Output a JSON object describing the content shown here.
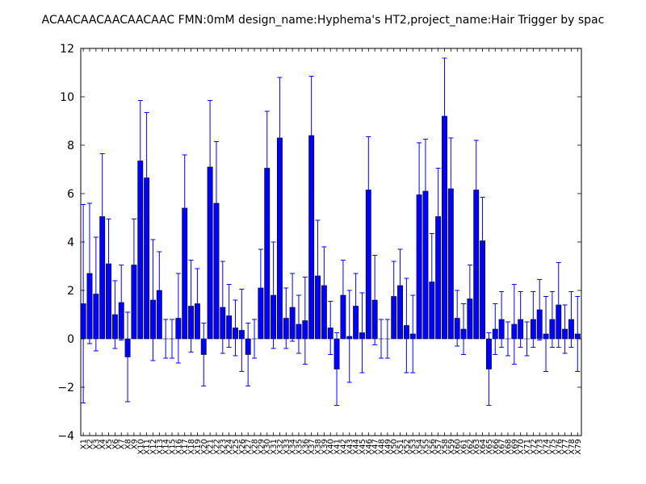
{
  "chart_data": {
    "type": "bar",
    "title": "ACAACAACAACAACAAC  FMN:0mM  design_name:Hyphema's HT2,project_name:Hair Trigger by spac",
    "xlabel": "",
    "ylabel": "",
    "ylim": [
      -4,
      12
    ],
    "yticks": [
      -4,
      -2,
      0,
      2,
      4,
      6,
      8,
      10,
      12
    ],
    "ytick_labels": [
      "−4",
      "−2",
      "0",
      "2",
      "4",
      "6",
      "8",
      "10",
      "12"
    ],
    "grid": false,
    "bar_color": "#0000ff",
    "error_color": "#0000ff",
    "categories": [
      "X1",
      "X2",
      "X3",
      "X4",
      "X5",
      "X6",
      "X7",
      "X8",
      "X9",
      "X10",
      "X11",
      "X12",
      "X13",
      "X14",
      "X15",
      "X16",
      "X17",
      "X18",
      "X19",
      "X20",
      "X21",
      "X22",
      "X23",
      "X24",
      "X25",
      "X26",
      "X27",
      "X28",
      "X29",
      "X30",
      "X31",
      "X32",
      "X33",
      "X34",
      "X35",
      "X36",
      "X37",
      "X38",
      "X39",
      "X40",
      "X41",
      "X42",
      "X43",
      "X44",
      "X45",
      "X46",
      "X47",
      "X48",
      "X49",
      "X50",
      "X51",
      "X52",
      "X53",
      "X54",
      "X55",
      "X56",
      "X57",
      "X58",
      "X59",
      "X60",
      "X61",
      "X62",
      "X63",
      "X64",
      "X65",
      "X66",
      "X67",
      "X68",
      "X69",
      "X70",
      "X71",
      "X72",
      "X73",
      "X74",
      "X75",
      "X76",
      "X77",
      "X78",
      "X79"
    ],
    "values": [
      1.45,
      2.7,
      1.85,
      5.05,
      3.1,
      1.0,
      1.5,
      -0.75,
      3.05,
      7.35,
      6.65,
      1.6,
      2.0,
      0.0,
      0.0,
      0.85,
      5.4,
      1.35,
      1.45,
      -0.65,
      7.1,
      5.6,
      1.3,
      0.95,
      0.45,
      0.35,
      -0.65,
      0.0,
      2.1,
      7.05,
      1.8,
      8.3,
      0.85,
      1.3,
      0.6,
      0.75,
      8.4,
      2.6,
      2.2,
      0.45,
      -1.25,
      1.8,
      0.1,
      1.35,
      0.25,
      6.15,
      1.6,
      0.0,
      0.0,
      1.75,
      2.2,
      0.55,
      0.2,
      5.95,
      6.1,
      2.35,
      5.05,
      9.2,
      6.2,
      0.85,
      0.4,
      1.65,
      6.15,
      4.05,
      -1.25,
      0.4,
      0.8,
      0.0,
      0.6,
      0.8,
      0.0,
      0.8,
      1.2,
      0.2,
      0.8,
      1.4,
      0.4,
      0.8,
      0.2
    ],
    "errors": [
      4.1,
      2.9,
      2.35,
      2.6,
      1.85,
      1.4,
      1.55,
      1.85,
      1.9,
      2.5,
      2.7,
      2.5,
      1.6,
      0.8,
      0.8,
      1.85,
      2.2,
      1.9,
      1.45,
      1.3,
      2.75,
      2.55,
      1.9,
      1.3,
      1.15,
      1.7,
      1.3,
      0.8,
      1.6,
      2.35,
      2.2,
      2.5,
      1.25,
      1.4,
      1.2,
      1.8,
      2.45,
      2.3,
      1.6,
      1.1,
      1.5,
      1.45,
      1.9,
      1.35,
      1.65,
      2.2,
      1.85,
      0.8,
      0.8,
      1.45,
      1.5,
      1.95,
      1.6,
      2.15,
      2.15,
      2.0,
      2.0,
      2.4,
      2.1,
      1.15,
      1.05,
      1.4,
      2.05,
      1.8,
      1.5,
      1.05,
      1.15,
      0.7,
      1.65,
      1.15,
      0.7,
      1.15,
      1.25,
      1.55,
      1.15,
      1.75,
      1.0,
      1.15,
      1.55
    ]
  }
}
